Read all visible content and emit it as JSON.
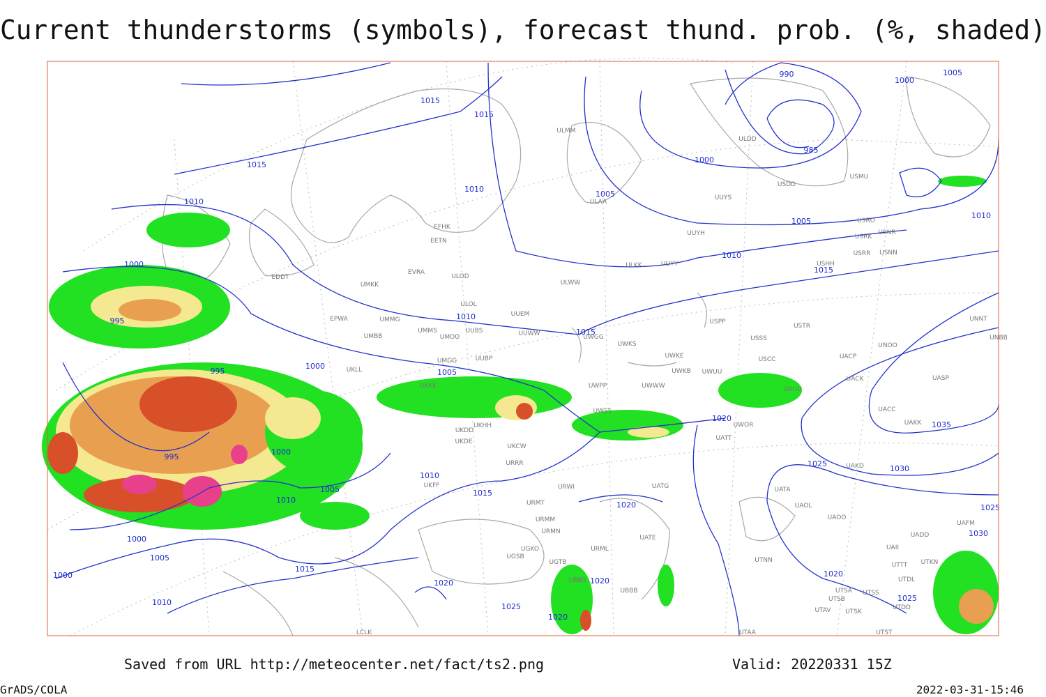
{
  "header": {
    "title": "Current thunderstorms (symbols), forecast thund. prob. (%, shaded)"
  },
  "footer": {
    "saved": "Saved from URL http://meteocenter.net/fact/ts2.png",
    "valid": "Valid: 20220331 15Z",
    "software": "GrADS/COLA",
    "timestamp": "2022-03-31-15:46"
  },
  "map": {
    "isobar_labels": [
      1015,
      1015,
      1015,
      1010,
      1000,
      995,
      995,
      1000,
      995,
      1000,
      1010,
      1005,
      1000,
      1005,
      1000,
      1010,
      1015,
      1010,
      1015,
      1005,
      1010,
      1010,
      1005,
      1015,
      1020,
      990,
      985,
      1000,
      1005,
      1010,
      1015,
      1000,
      1005,
      1010,
      1035,
      1030,
      1025,
      1025,
      1030,
      1020,
      1020,
      1020,
      1025,
      1020,
      1020,
      1025
    ],
    "stations": [
      "ULMM",
      "ULDD",
      "USDD",
      "USMU",
      "ULAA",
      "UUYS",
      "UUYH",
      "USRO",
      "USNR",
      "USRK",
      "USRR",
      "USNN",
      "USHH",
      "ULKK",
      "UUYY",
      "EFHK",
      "EETN",
      "EVRA",
      "ULOD",
      "UMKK",
      "ULWW",
      "EDDT",
      "ULOL",
      "UUEM",
      "EPWA",
      "UMMG",
      "UMMS",
      "UMOO",
      "UUBS",
      "UUWW",
      "UMBB",
      "UWGG",
      "UWKS",
      "USPP",
      "USSS",
      "USTR",
      "UNOO",
      "UNBB",
      "UMGG",
      "UUBP",
      "UWKE",
      "USCC",
      "UWKB",
      "UWUU",
      "UACP",
      "UNNT",
      "UKLL",
      "UKKK",
      "UWPP",
      "UWWW",
      "UAUU",
      "UACK",
      "UASP",
      "UWSS",
      "UKHH",
      "UKDD",
      "UKDE",
      "UKCW",
      "URRR",
      "UKFF",
      "UATG",
      "URWI",
      "UATT",
      "UWOR",
      "UACC",
      "UAKK",
      "UAKD",
      "UATA",
      "UAOL",
      "UAOO",
      "URMT",
      "URMM",
      "URMN",
      "URML",
      "UATE",
      "UTNN",
      "UTSA",
      "UTSS",
      "UTSB",
      "UTAV",
      "UTSK",
      "UTDD",
      "UTST",
      "UTAA",
      "UBBB",
      "UBBG",
      "UGTB",
      "UGSB",
      "UGKO",
      "LCLK",
      "UAII",
      "UADD",
      "UAFM",
      "UTKN",
      "UTDL",
      "UTTT"
    ]
  }
}
